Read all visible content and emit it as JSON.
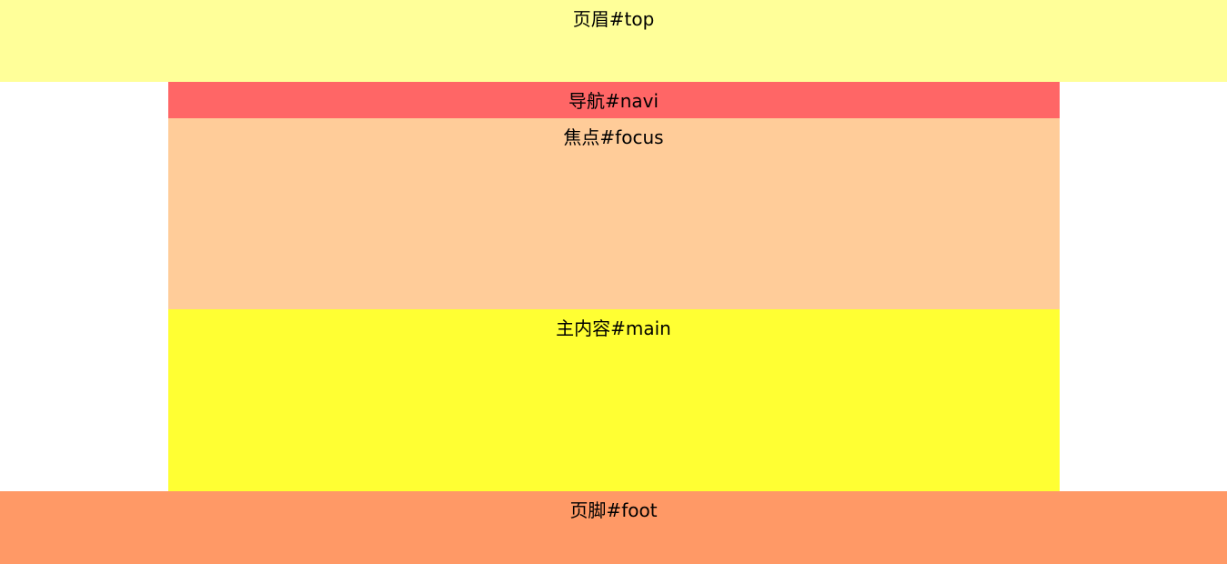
{
  "top": {
    "label": "页眉#top",
    "color": "#ffff99"
  },
  "navi": {
    "label": "导航#navi",
    "color": "#ff6666"
  },
  "focus": {
    "label": "焦点#focus",
    "color": "#ffcc99"
  },
  "main": {
    "label": "主内容#main",
    "color": "#ffff33"
  },
  "foot": {
    "label": "页脚#foot",
    "color": "#ff9966"
  }
}
